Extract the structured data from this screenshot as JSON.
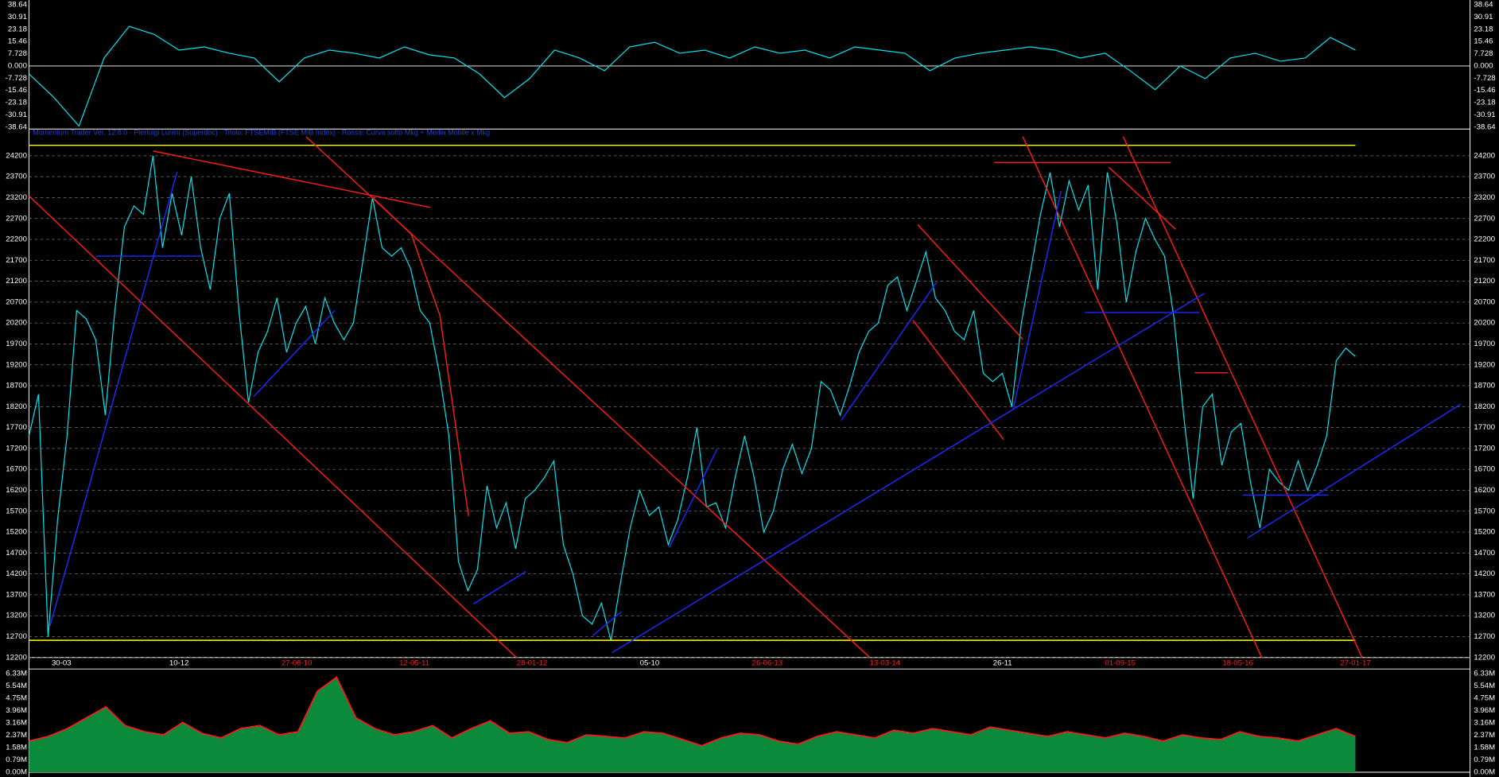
{
  "chart_data": [
    {
      "type": "line",
      "color": "#00e5ee",
      "values": [
        -5,
        -20,
        -38,
        5,
        25,
        20,
        10,
        12,
        8,
        5,
        -10,
        5,
        10,
        8,
        5,
        12,
        7,
        5,
        -5,
        -20,
        -8,
        10,
        5,
        -3,
        12,
        15,
        8,
        10,
        5,
        12,
        8,
        10,
        5,
        12,
        10,
        8,
        -3,
        5,
        8,
        10,
        12,
        10,
        5,
        8,
        -3,
        -15,
        0,
        -8,
        5,
        8,
        3,
        5,
        18,
        10
      ],
      "ylim": [
        -38.64,
        38.64
      ],
      "yticks": [
        -38.64,
        -30.91,
        -23.18,
        -15.46,
        -7.728,
        {
          "value": 0,
          "label": "0.000"
        },
        7.728,
        15.46,
        23.18,
        30.91,
        38.64
      ]
    },
    {
      "type": "line",
      "color": "#00e5ee",
      "title": "Momentum Trader Ver. 12.8.0 - Pierluigi Lunini (Superdoc) - Titolo: FTSEMIB (FTSE MIB Index) - Rossa: Curva sotto Mkg + Media Mobile x Mkg",
      "values": [
        17500,
        18500,
        12700,
        15500,
        17500,
        20500,
        20300,
        19800,
        18000,
        20500,
        22500,
        23000,
        22800,
        24200,
        22000,
        23300,
        22300,
        23700,
        22000,
        21000,
        22700,
        23300,
        20500,
        18300,
        19500,
        20000,
        20800,
        19500,
        20200,
        20600,
        19700,
        20800,
        20200,
        19800,
        20200,
        21700,
        23200,
        22000,
        21800,
        22000,
        21500,
        20500,
        20200,
        19000,
        17500,
        14500,
        13800,
        14300,
        16300,
        15300,
        15900,
        14800,
        16000,
        16200,
        16500,
        16900,
        14900,
        14200,
        13200,
        13000,
        13500,
        12600,
        14000,
        15300,
        16200,
        15600,
        15800,
        14900,
        15500,
        16500,
        17700,
        15800,
        15900,
        15300,
        16500,
        17500,
        16500,
        15200,
        15700,
        16700,
        17300,
        16600,
        17200,
        18800,
        18600,
        18000,
        18700,
        19500,
        20000,
        20200,
        21100,
        21300,
        20500,
        21200,
        21900,
        20800,
        20500,
        20000,
        19800,
        20500,
        19000,
        18800,
        19000,
        18200,
        20200,
        21500,
        22800,
        23800,
        22500,
        23600,
        22900,
        23500,
        21000,
        23800,
        22600,
        20700,
        21900,
        22700,
        22200,
        21800,
        20300,
        18000,
        16000,
        18200,
        18500,
        16800,
        17600,
        17800,
        16400,
        15300,
        16700,
        16400,
        16200,
        16900,
        16200,
        16800,
        17500,
        19300,
        19600,
        19400
      ],
      "ylim": [
        12200,
        24200
      ],
      "yticks": [
        12200,
        12700,
        13200,
        13700,
        14200,
        14700,
        15200,
        15700,
        16200,
        16700,
        17200,
        17700,
        18200,
        18700,
        19200,
        19700,
        20200,
        20700,
        21200,
        21700,
        22200,
        22700,
        23200,
        23700,
        24200
      ],
      "grid": true,
      "x_labels": [
        "30-03",
        "10-12",
        "27-08-10",
        "12-05-11",
        "28-01-12",
        "05-10",
        "26-06-13",
        "13-03-14",
        "26-11",
        "01-09-15",
        "18-05-16",
        "27-01-17"
      ],
      "x_label_colors": [
        "#ffffff",
        "#ffffff",
        "#ff2020",
        "#ff2020",
        "#ff2020",
        "#ffffff",
        "#ff2020",
        "#ff2020",
        "#ffffff",
        "#ff2020",
        "#ff2020",
        "#ff2020"
      ]
    },
    {
      "type": "area",
      "color": "#0b8a3c",
      "line_color": "#ff1a1a",
      "values": [
        2.0,
        2.3,
        2.8,
        3.5,
        4.2,
        3.0,
        2.6,
        2.4,
        3.2,
        2.5,
        2.2,
        2.8,
        3.0,
        2.4,
        2.6,
        5.2,
        6.1,
        3.5,
        2.8,
        2.4,
        2.6,
        3.0,
        2.2,
        2.8,
        3.3,
        2.5,
        2.6,
        2.1,
        1.9,
        2.4,
        2.3,
        2.2,
        2.6,
        2.5,
        2.1,
        1.7,
        2.2,
        2.5,
        2.4,
        2.0,
        1.8,
        2.3,
        2.6,
        2.4,
        2.2,
        2.7,
        2.5,
        2.8,
        2.6,
        2.4,
        2.9,
        2.7,
        2.5,
        2.3,
        2.6,
        2.4,
        2.2,
        2.5,
        2.3,
        2.0,
        2.4,
        2.2,
        2.1,
        2.6,
        2.3,
        2.2,
        2.0,
        2.4,
        2.8,
        2.3
      ],
      "ylim": [
        0,
        6.33
      ],
      "yticks": [
        {
          "value": 0,
          "label": "0.00M"
        },
        {
          "value": 0.79,
          "label": "0.79M"
        },
        {
          "value": 1.58,
          "label": "1.58M"
        },
        {
          "value": 2.37,
          "label": "2.37M"
        },
        {
          "value": 3.16,
          "label": "3.16M"
        },
        {
          "value": 3.96,
          "label": "3.96M"
        },
        {
          "value": 4.75,
          "label": "4.75M"
        },
        {
          "value": 5.54,
          "label": "5.54M"
        },
        {
          "value": 6.33,
          "label": "6.33M"
        }
      ]
    }
  ]
}
